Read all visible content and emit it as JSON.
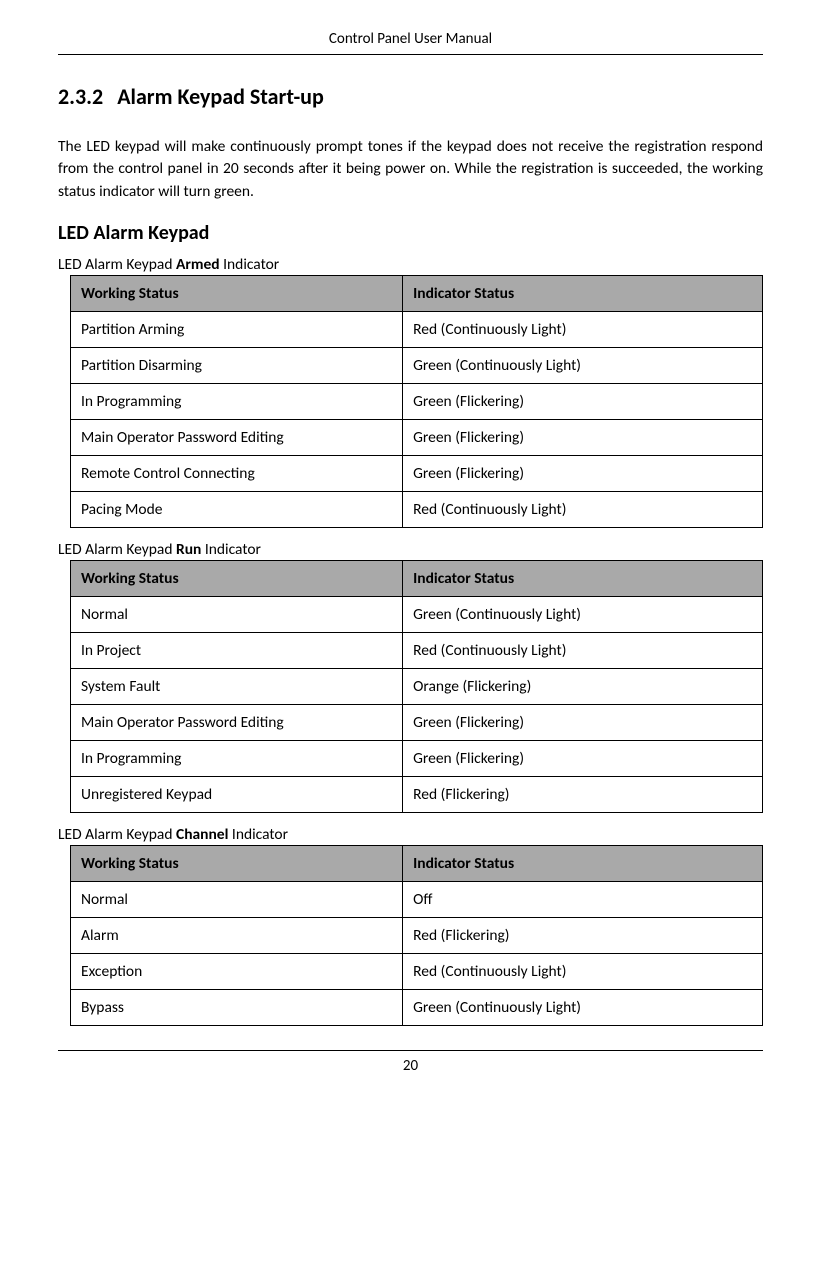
{
  "header": {
    "title": "Control Panel User Manual"
  },
  "section": {
    "number": "2.3.2",
    "title": "Alarm Keypad Start-up",
    "paragraph": "The LED keypad will make continuously prompt tones if the keypad does not receive the registration respond from the control panel in 20 seconds after it being power on. While the registration is succeeded, the working status indicator will turn green."
  },
  "subheading": "LED Alarm Keypad",
  "tables": [
    {
      "caption_prefix": "LED Alarm Keypad ",
      "caption_bold": "Armed",
      "caption_suffix": " Indicator",
      "header_bg": "#a9a9a9",
      "columns": [
        "Working Status",
        "Indicator Status"
      ],
      "rows": [
        [
          "Partition Arming",
          "Red (Continuously Light)"
        ],
        [
          "Partition Disarming",
          "Green (Continuously Light)"
        ],
        [
          "In Programming",
          "Green (Flickering)"
        ],
        [
          "Main Operator Password Editing",
          "Green (Flickering)"
        ],
        [
          "Remote Control Connecting",
          "Green (Flickering)"
        ],
        [
          "Pacing Mode",
          "Red (Continuously Light)"
        ]
      ]
    },
    {
      "caption_prefix": "LED Alarm Keypad ",
      "caption_bold": "Run",
      "caption_suffix": " Indicator",
      "header_bg": "#a9a9a9",
      "columns": [
        "Working Status",
        "Indicator Status"
      ],
      "rows": [
        [
          "Normal",
          "Green (Continuously Light)"
        ],
        [
          "In Project",
          "Red (Continuously Light)"
        ],
        [
          "System Fault",
          "Orange (Flickering)"
        ],
        [
          "Main Operator Password Editing",
          "Green (Flickering)"
        ],
        [
          "In Programming",
          "Green (Flickering)"
        ],
        [
          "Unregistered Keypad",
          "Red (Flickering)"
        ]
      ]
    },
    {
      "caption_prefix": "LED Alarm Keypad ",
      "caption_bold": "Channel",
      "caption_suffix": " Indicator",
      "header_bg": "#a9a9a9",
      "columns": [
        "Working Status",
        "Indicator Status"
      ],
      "rows": [
        [
          "Normal",
          "Off"
        ],
        [
          "Alarm",
          "Red (Flickering)"
        ],
        [
          "Exception",
          "Red (Continuously Light)"
        ],
        [
          "Bypass",
          "Green (Continuously Light)"
        ]
      ]
    }
  ],
  "footer": {
    "page_number": "20"
  }
}
